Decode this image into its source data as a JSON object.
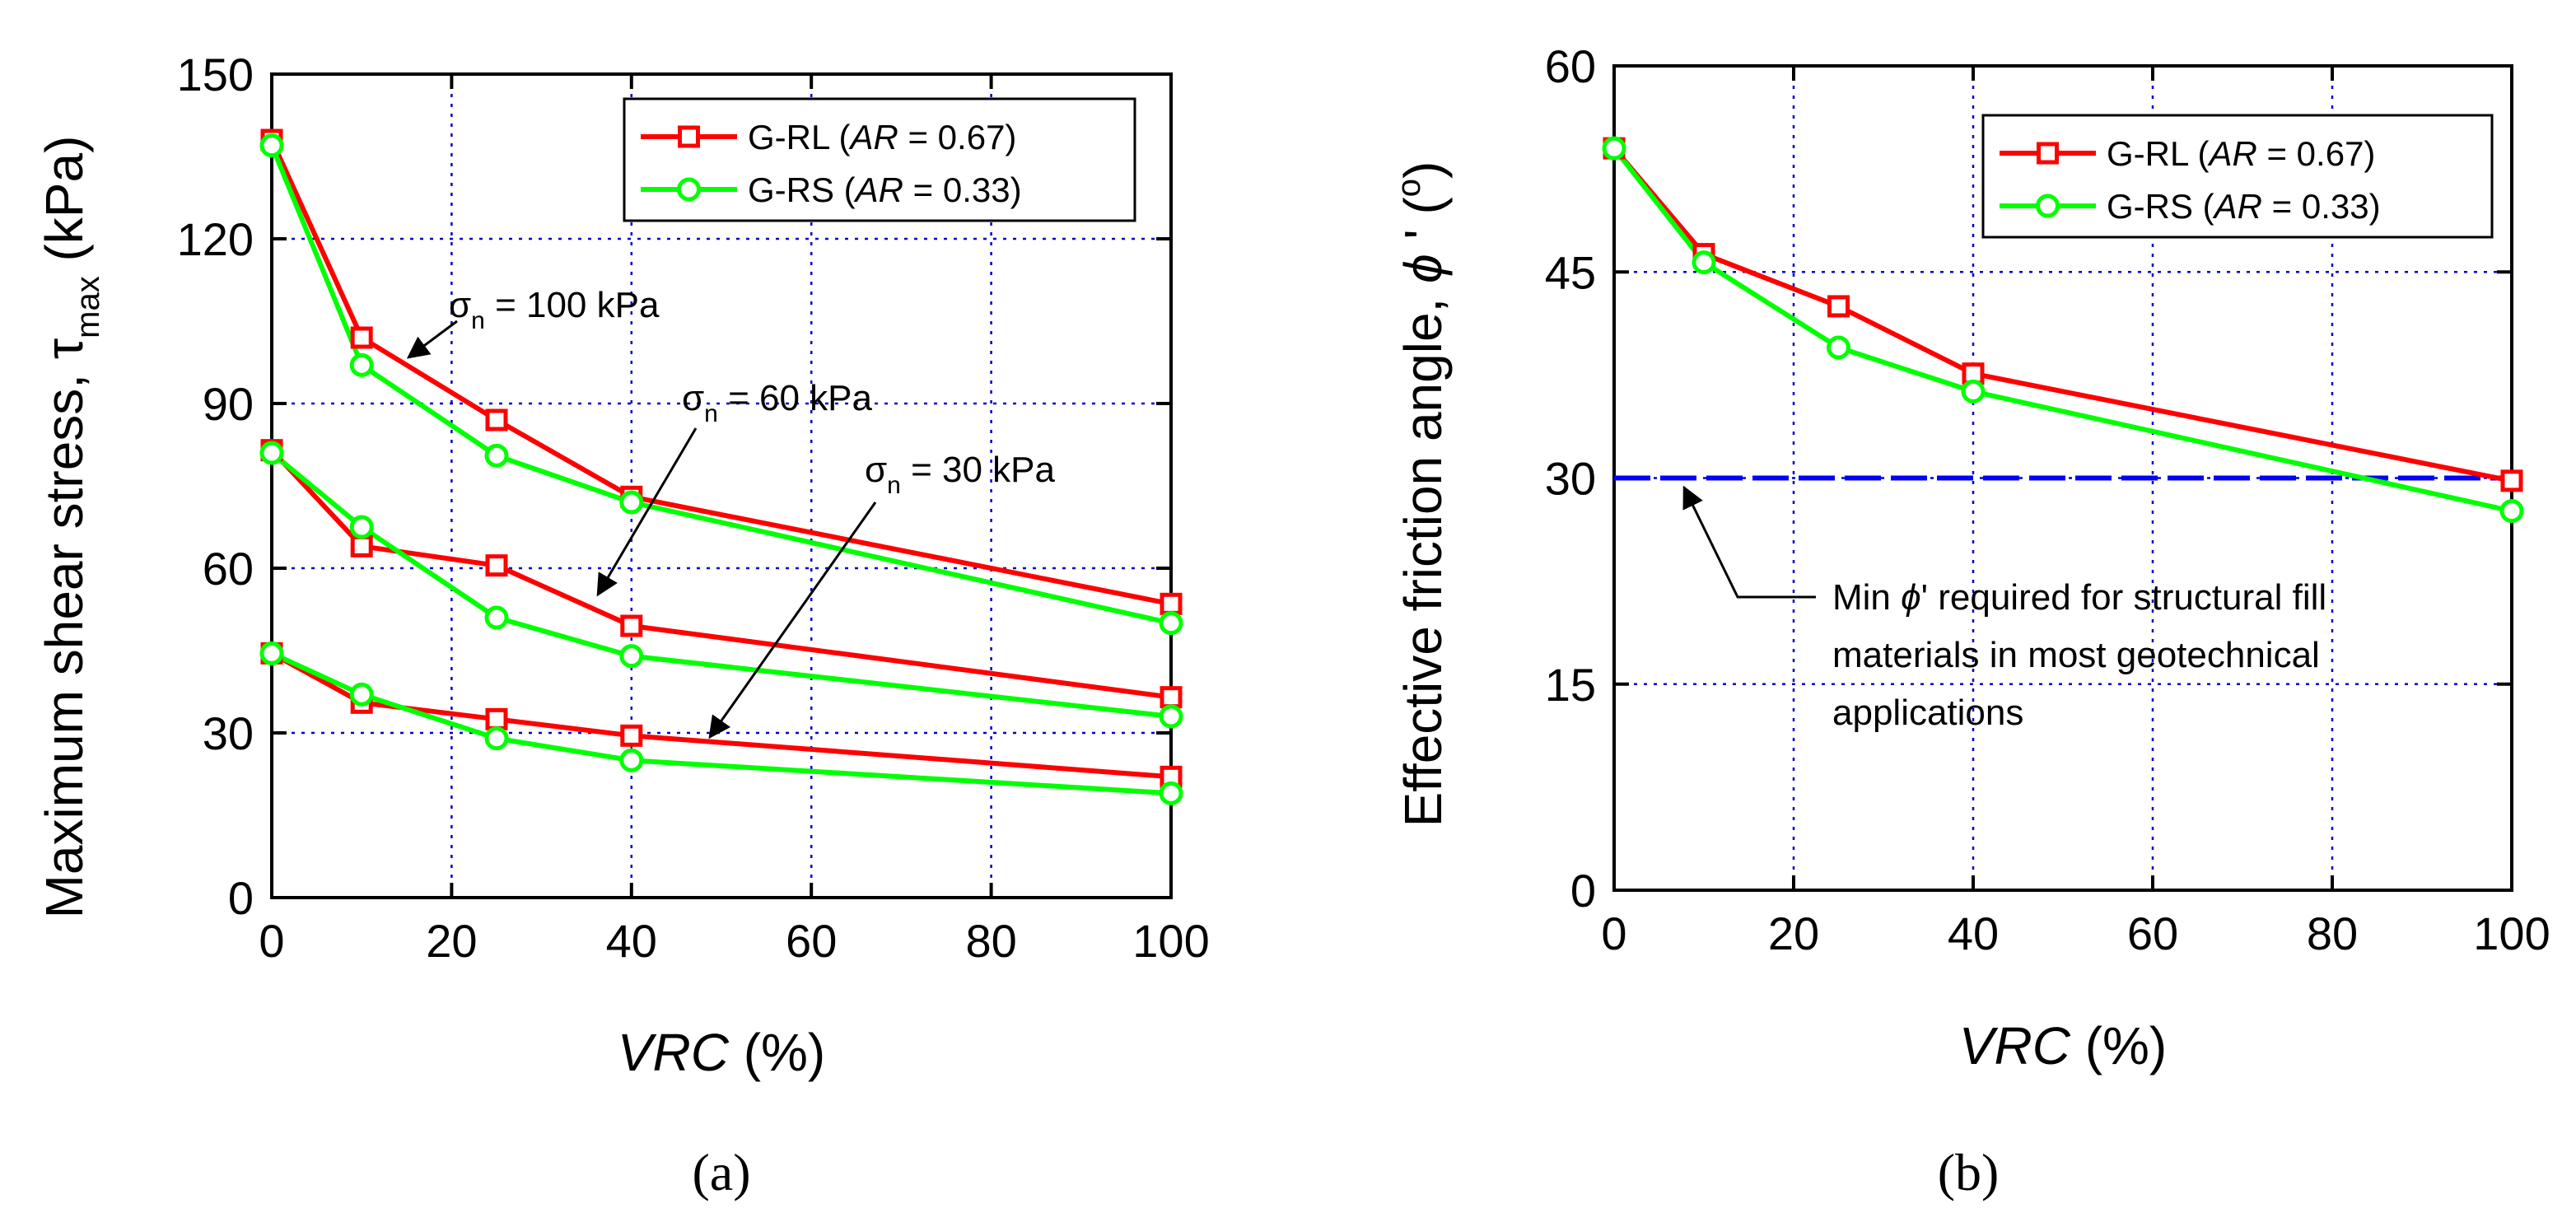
{
  "colors": {
    "red": "#ff0000",
    "green": "#00ff00",
    "grid": "#0000cc",
    "ref_line": "#0000ff"
  },
  "chart_data": [
    {
      "type": "line",
      "panel_label": "(a)",
      "xlabel_italic": "VRC",
      "xlabel_rest": " (%)",
      "ylabel_main": "Maximum shear stress, ",
      "ylabel_symbol": "τ",
      "ylabel_sub": "max",
      "ylabel_unit": " (kPa)",
      "xlim": [
        0,
        100
      ],
      "ylim": [
        0,
        150
      ],
      "x_ticks": [
        0,
        20,
        40,
        60,
        80,
        100
      ],
      "y_ticks": [
        0,
        30,
        60,
        90,
        120,
        150
      ],
      "x_tick_labels": [
        "0",
        "20",
        "40",
        "60",
        "80",
        "100"
      ],
      "y_tick_labels": [
        "0",
        "30",
        "60",
        "90",
        "120",
        "150"
      ],
      "grid": true,
      "legend_placement": "top-right",
      "legend": [
        {
          "pre": "G-RL (",
          "ar": "AR",
          "post": " = 0.67)"
        },
        {
          "pre": "G-RS (",
          "ar": "AR",
          "post": " = 0.33)"
        }
      ],
      "x": [
        0,
        10,
        25,
        40,
        100
      ],
      "series": [
        {
          "name": "G-RL (AR = 0.67), σn = 100 kPa",
          "group": "G-RL",
          "values": [
            138,
            102,
            87,
            73,
            53.5
          ]
        },
        {
          "name": "G-RS (AR = 0.33), σn = 100 kPa",
          "group": "G-RS",
          "values": [
            137,
            97,
            80.5,
            72,
            50
          ]
        },
        {
          "name": "G-RL (AR = 0.67), σn = 60 kPa",
          "group": "G-RL",
          "values": [
            81.5,
            64,
            60.5,
            49.5,
            36.5
          ]
        },
        {
          "name": "G-RS (AR = 0.33), σn = 60 kPa",
          "group": "G-RS",
          "values": [
            81,
            67.5,
            51,
            44,
            33
          ]
        },
        {
          "name": "G-RL (AR = 0.67), σn = 30 kPa",
          "group": "G-RL",
          "values": [
            44.5,
            35.5,
            32.5,
            29.5,
            22
          ]
        },
        {
          "name": "G-RS (AR = 0.33), σn = 30 kPa",
          "group": "G-RS",
          "values": [
            44.5,
            37,
            29,
            25,
            19
          ]
        }
      ],
      "annotations": [
        {
          "sigma": "σ",
          "sub": "n",
          "text": " = 100 kPa",
          "x": 10.5,
          "y": 100
        },
        {
          "sigma": "σ",
          "sub": "n",
          "text": " = 60 kPa",
          "x": 36,
          "y": 56
        },
        {
          "sigma": "σ",
          "sub": "n",
          "text": " = 30 kPa",
          "x": 49,
          "y": 29
        }
      ]
    },
    {
      "type": "line",
      "panel_label": "(b)",
      "xlabel_italic": "VRC",
      "xlabel_rest": " (%)",
      "ylabel_main": "Effective friction angle, ",
      "ylabel_symbol": "ϕ",
      "ylabel_prime": " '",
      "ylabel_open": " (",
      "ylabel_deg": "o",
      "ylabel_close": ")",
      "xlim": [
        0,
        100
      ],
      "ylim": [
        0,
        60
      ],
      "x_ticks": [
        0,
        20,
        40,
        60,
        80,
        100
      ],
      "y_ticks": [
        0,
        15,
        30,
        45,
        60
      ],
      "x_tick_labels": [
        "0",
        "20",
        "40",
        "60",
        "80",
        "100"
      ],
      "y_tick_labels": [
        "0",
        "15",
        "30",
        "45",
        "60"
      ],
      "grid": true,
      "legend_placement": "top-right",
      "legend": [
        {
          "pre": "G-RL (",
          "ar": "AR",
          "post": " = 0.67)"
        },
        {
          "pre": "G-RS (",
          "ar": "AR",
          "post": " = 0.33)"
        }
      ],
      "x": [
        0,
        10,
        25,
        40,
        100
      ],
      "series": [
        {
          "name": "G-RL (AR = 0.67)",
          "group": "G-RL",
          "values": [
            54,
            46.3,
            42.5,
            37.6,
            29.8
          ]
        },
        {
          "name": "G-RS (AR = 0.33)",
          "group": "G-RS",
          "values": [
            54,
            45.7,
            39.5,
            36.3,
            27.6
          ]
        }
      ],
      "reference_line": {
        "y": 30,
        "label": "Min ϕ' required"
      },
      "annotation_lines": [
        {
          "pre": "Min ",
          "sym": "ϕ",
          "post": "' required for structural fill"
        },
        {
          "pre": "materials in most geotechnical",
          "sym": "",
          "post": ""
        },
        {
          "pre": "applications",
          "sym": "",
          "post": ""
        }
      ]
    }
  ]
}
